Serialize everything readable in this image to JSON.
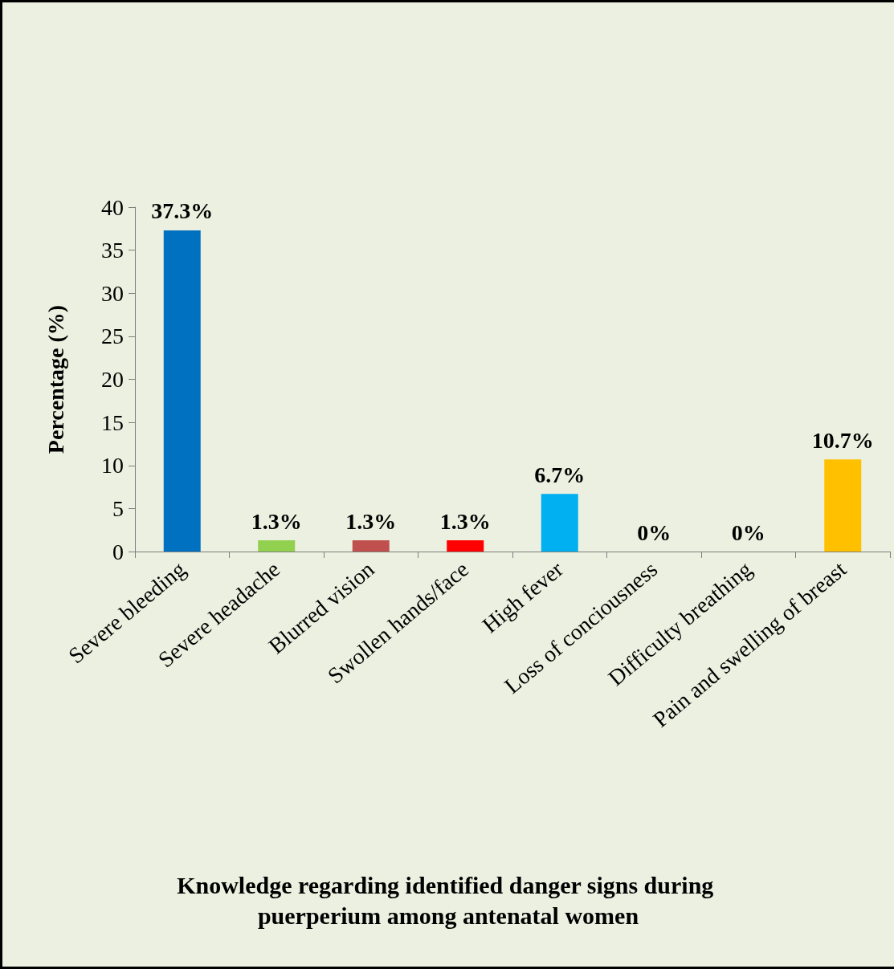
{
  "chart_data": {
    "type": "bar",
    "title": "Knowledge regarding identified danger signs during puerperium among antenatal women",
    "ylabel": "Percentage (%)",
    "categories": [
      "Severe bleeding",
      "Severe headache",
      "Blurred vision",
      "Swollen hands/face",
      "High fever",
      "Loss of conciousness",
      "Difficulty breathing",
      "Pain and swelling of breast"
    ],
    "values": [
      37.3,
      1.3,
      1.3,
      1.3,
      6.7,
      0,
      0,
      10.7
    ],
    "colors": [
      "#0070c0",
      "#92d050",
      "#c0504d",
      "#ff0000",
      "#00b0f0",
      "#4f81bd",
      "#4f81bd",
      "#ffc000"
    ],
    "value_labels": [
      "37.3%",
      "1.3%",
      "1.3%",
      "1.3%",
      "6.7%",
      "0%",
      "0%",
      "10.7%"
    ],
    "ylim": [
      0,
      40
    ],
    "yticks": [
      0,
      5,
      10,
      15,
      20,
      25,
      30,
      35,
      40
    ],
    "grid": false
  }
}
